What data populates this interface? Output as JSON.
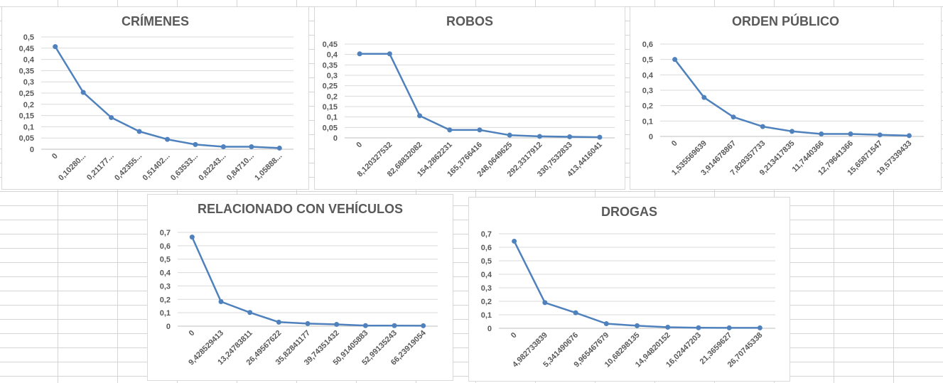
{
  "chart_data": [
    {
      "type": "line",
      "title": "CRÍMENES",
      "categories": [
        "0",
        "0,10280...",
        "0,21177...",
        "0,42355...",
        "0,51402...",
        "0,63533...",
        "0,82243...",
        "0,84710...",
        "1,05888..."
      ],
      "values": [
        0.457,
        0.253,
        0.141,
        0.079,
        0.044,
        0.021,
        0.011,
        0.011,
        0.005
      ],
      "ylim": [
        0,
        0.5
      ],
      "yticks": [
        "0",
        "0,05",
        "0,1",
        "0,15",
        "0,2",
        "0,25",
        "0,3",
        "0,35",
        "0,4",
        "0,45",
        "0,5"
      ],
      "grid": true,
      "color": "#4f81bd"
    },
    {
      "type": "line",
      "title": "ROBOS",
      "categories": [
        "0",
        "8,120327532",
        "82,68832082",
        "154,2862231",
        "165,3766416",
        "248,0649625",
        "292,3317912",
        "330,7532833",
        "413,4416041"
      ],
      "values": [
        0.403,
        0.403,
        0.106,
        0.038,
        0.038,
        0.013,
        0.007,
        0.005,
        0.003
      ],
      "ylim": [
        0,
        0.45
      ],
      "yticks": [
        "0",
        "0,05",
        "0,1",
        "0,15",
        "0,2",
        "0,25",
        "0,3",
        "0,35",
        "0,4",
        "0,45"
      ],
      "grid": true,
      "color": "#4f81bd"
    },
    {
      "type": "line",
      "title": "ORDEN PÚBLICO",
      "categories": [
        "0",
        "1,535569639",
        "3,914678867",
        "7,829357733",
        "9,213417835",
        "11,7440366",
        "12,79641366",
        "15,65871547",
        "19,57339433"
      ],
      "values": [
        0.5,
        0.253,
        0.126,
        0.064,
        0.033,
        0.016,
        0.016,
        0.01,
        0.005
      ],
      "ylim": [
        0,
        0.6
      ],
      "yticks": [
        "0",
        "0,1",
        "0,2",
        "0,3",
        "0,4",
        "0,5",
        "0,6"
      ],
      "grid": true,
      "color": "#4f81bd"
    },
    {
      "type": "line",
      "title": "RELACIONADO CON VEHÍCULOS",
      "categories": [
        "0",
        "9,428529413",
        "13,24783811",
        "26,49567622",
        "35,82841177",
        "39,74351432",
        "50,91405883",
        "52,99135243",
        "66,23919054"
      ],
      "values": [
        0.665,
        0.183,
        0.102,
        0.03,
        0.019,
        0.013,
        0.004,
        0.004,
        0.003
      ],
      "ylim": [
        0,
        0.7
      ],
      "yticks": [
        "0",
        "0,1",
        "0,2",
        "0,3",
        "0,4",
        "0,5",
        "0,6",
        "0,7"
      ],
      "grid": true,
      "color": "#4f81bd"
    },
    {
      "type": "line",
      "title": "DROGAS",
      "categories": [
        "0",
        "4,982733839",
        "5,341490676",
        "9,965467679",
        "10,68298135",
        "14,94820152",
        "16,02447203",
        "21,3659627",
        "26,70745338"
      ],
      "values": [
        0.645,
        0.19,
        0.115,
        0.034,
        0.019,
        0.008,
        0.004,
        0.003,
        0.003
      ],
      "ylim": [
        0,
        0.7
      ],
      "yticks": [
        "0",
        "0,1",
        "0,2",
        "0,3",
        "0,4",
        "0,5",
        "0,6",
        "0,7"
      ],
      "grid": true,
      "color": "#4f81bd"
    }
  ]
}
